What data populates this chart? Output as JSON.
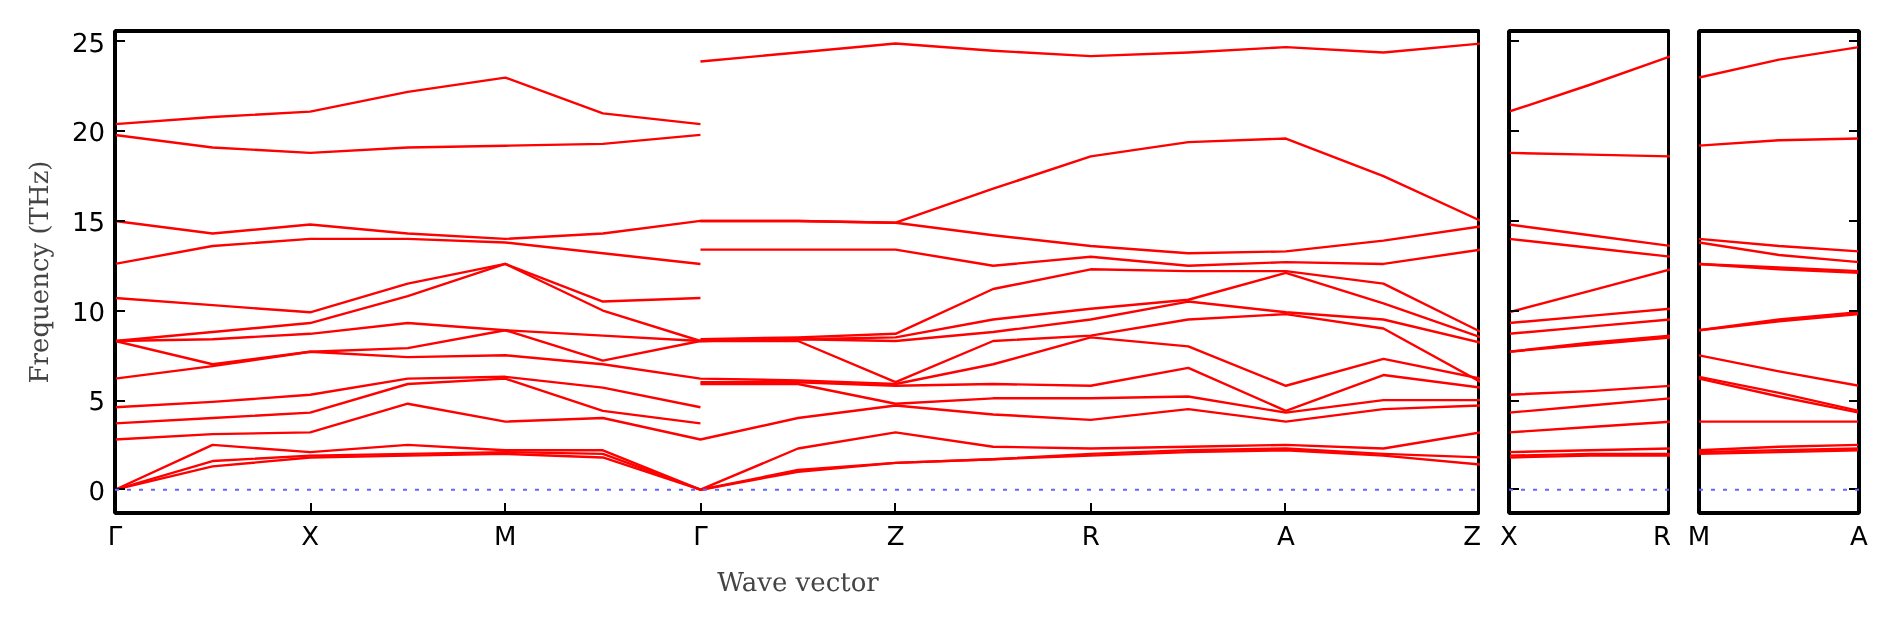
{
  "chart_data": [
    {
      "type": "line",
      "xlabel": "Wave vector",
      "ylabel": "Frequency (THz)",
      "ylim": [
        -1.3,
        25.6
      ],
      "grid": false,
      "categories": [
        "Γ",
        null,
        "X",
        null,
        "M",
        null,
        "Γ",
        null,
        "Z",
        null,
        "R",
        null,
        "A",
        null,
        "Z"
      ],
      "yticks": [
        0,
        5,
        10,
        15,
        20,
        25
      ],
      "ref_lines": [
        {
          "axis": "y",
          "value": 0,
          "color": "#6666ff",
          "line_style": "dotted"
        }
      ],
      "series": [
        {
          "color": "#ff0000",
          "values": [
            0,
            1.3,
            1.8,
            1.9,
            2.0,
            1.8,
            0,
            1.0,
            1.5,
            1.7,
            1.9,
            2.1,
            2.2,
            1.9,
            1.4
          ]
        },
        {
          "color": "#ff0000",
          "values": [
            0,
            1.6,
            1.9,
            2.0,
            2.1,
            2.0,
            0,
            1.1,
            1.5,
            1.7,
            2.0,
            2.2,
            2.3,
            2.0,
            1.8
          ]
        },
        {
          "color": "#ff0000",
          "values": [
            0,
            2.5,
            2.1,
            2.5,
            2.2,
            2.2,
            0,
            2.3,
            3.2,
            2.4,
            2.3,
            2.4,
            2.5,
            2.3,
            3.2
          ]
        },
        {
          "color": "#ff0000",
          "values": [
            2.8,
            3.1,
            3.2,
            4.8,
            3.8,
            4.0,
            2.8,
            4.0,
            4.7,
            4.2,
            3.9,
            4.5,
            3.8,
            4.5,
            4.7
          ]
        },
        {
          "color": "#ff0000",
          "values": [
            3.7,
            4.0,
            4.3,
            5.9,
            6.2,
            4.4,
            3.7,
            null,
            null,
            null,
            null,
            null,
            null,
            null,
            null
          ]
        },
        {
          "color": "#ff0000",
          "values": [
            4.6,
            4.9,
            5.3,
            6.2,
            6.3,
            5.7,
            4.6,
            null,
            null,
            null,
            null,
            null,
            null,
            null,
            null
          ]
        },
        {
          "color": "#ff0000",
          "values": [
            6.2,
            6.9,
            7.7,
            7.4,
            7.5,
            7.0,
            6.2,
            6.1,
            5.9,
            7.0,
            8.5,
            8.0,
            5.8,
            7.3,
            6.2
          ]
        },
        {
          "color": "#ff0000",
          "values": [
            8.3,
            7.0,
            7.7,
            7.9,
            8.9,
            7.2,
            8.3,
            8.3,
            6.0,
            8.3,
            8.6,
            9.5,
            9.8,
            9.0,
            6.0
          ]
        },
        {
          "color": "#ff0000",
          "values": [
            8.3,
            8.4,
            8.7,
            9.3,
            8.9,
            8.6,
            8.3,
            8.4,
            8.3,
            8.8,
            9.5,
            10.5,
            9.9,
            9.5,
            8.2
          ]
        },
        {
          "color": "#ff0000",
          "values": [
            8.3,
            8.8,
            9.3,
            10.8,
            12.6,
            10.0,
            8.3,
            8.4,
            8.5,
            9.5,
            10.1,
            10.6,
            12.1,
            10.4,
            8.5
          ]
        },
        {
          "color": "#ff0000",
          "values": [
            10.7,
            10.3,
            9.9,
            11.5,
            12.6,
            10.5,
            10.7,
            null,
            null,
            null,
            null,
            null,
            null,
            null,
            null
          ]
        },
        {
          "color": "#ff0000",
          "values": [
            12.6,
            13.6,
            14.0,
            14.0,
            13.8,
            13.2,
            12.6,
            null,
            null,
            null,
            null,
            null,
            null,
            null,
            null
          ]
        },
        {
          "color": "#ff0000",
          "values": [
            15.0,
            14.3,
            14.8,
            14.3,
            14.0,
            14.3,
            15.0,
            15.0,
            14.9,
            14.2,
            13.6,
            13.2,
            13.3,
            13.9,
            14.7
          ]
        },
        {
          "color": "#ff0000",
          "values": [
            19.8,
            19.1,
            18.8,
            19.1,
            19.2,
            19.3,
            19.8,
            null,
            null,
            null,
            null,
            null,
            null,
            null,
            null
          ]
        },
        {
          "color": "#ff0000",
          "values": [
            20.4,
            20.8,
            21.1,
            22.2,
            23.0,
            21.0,
            20.4,
            null,
            null,
            null,
            null,
            null,
            null,
            null,
            null
          ]
        },
        {
          "color": "#ff0000",
          "values": [
            null,
            null,
            null,
            null,
            null,
            null,
            5.9,
            5.9,
            4.8,
            5.1,
            5.1,
            5.2,
            4.3,
            5.0,
            5.0
          ]
        },
        {
          "color": "#ff0000",
          "values": [
            null,
            null,
            null,
            null,
            null,
            null,
            6.0,
            6.0,
            5.8,
            5.9,
            5.8,
            6.8,
            4.4,
            6.4,
            5.7
          ]
        },
        {
          "color": "#ff0000",
          "values": [
            null,
            null,
            null,
            null,
            null,
            null,
            8.4,
            8.5,
            8.7,
            11.2,
            12.3,
            12.2,
            12.2,
            11.5,
            8.8
          ]
        },
        {
          "color": "#ff0000",
          "values": [
            null,
            null,
            null,
            null,
            null,
            null,
            13.4,
            13.4,
            13.4,
            12.5,
            13.0,
            12.5,
            12.7,
            12.6,
            13.4
          ]
        },
        {
          "color": "#ff0000",
          "values": [
            null,
            null,
            null,
            null,
            null,
            null,
            15.0,
            15.0,
            14.9,
            16.8,
            18.6,
            19.4,
            19.6,
            17.5,
            15.0
          ]
        },
        {
          "color": "#ff0000",
          "values": [
            null,
            null,
            null,
            null,
            null,
            null,
            23.9,
            24.4,
            24.9,
            24.5,
            24.2,
            24.4,
            24.7,
            24.4,
            24.9
          ]
        }
      ]
    },
    {
      "type": "line",
      "ylim": [
        -1.3,
        25.6
      ],
      "grid": false,
      "tick_labels": "x",
      "categories": [
        "X",
        null,
        "R"
      ],
      "yticks": [
        0,
        5,
        10,
        15,
        20,
        25
      ],
      "ref_lines": [
        {
          "axis": "y",
          "value": 0,
          "color": "#6666ff",
          "line_style": "dotted"
        }
      ],
      "series": [
        {
          "color": "#ff0000",
          "values": [
            1.8,
            1.9,
            1.9
          ]
        },
        {
          "color": "#ff0000",
          "values": [
            1.9,
            2.0,
            2.0
          ]
        },
        {
          "color": "#ff0000",
          "values": [
            2.1,
            2.2,
            2.3
          ]
        },
        {
          "color": "#ff0000",
          "values": [
            3.2,
            3.5,
            3.8
          ]
        },
        {
          "color": "#ff0000",
          "values": [
            4.3,
            4.7,
            5.1
          ]
        },
        {
          "color": "#ff0000",
          "values": [
            5.3,
            5.5,
            5.8
          ]
        },
        {
          "color": "#ff0000",
          "values": [
            7.7,
            8.1,
            8.5
          ]
        },
        {
          "color": "#ff0000",
          "values": [
            7.7,
            8.2,
            8.6
          ]
        },
        {
          "color": "#ff0000",
          "values": [
            8.7,
            9.1,
            9.5
          ]
        },
        {
          "color": "#ff0000",
          "values": [
            9.3,
            9.7,
            10.1
          ]
        },
        {
          "color": "#ff0000",
          "values": [
            9.9,
            11.1,
            12.3
          ]
        },
        {
          "color": "#ff0000",
          "values": [
            14.0,
            13.5,
            13.0
          ]
        },
        {
          "color": "#ff0000",
          "values": [
            14.8,
            14.2,
            13.6
          ]
        },
        {
          "color": "#ff0000",
          "values": [
            18.8,
            18.7,
            18.6
          ]
        },
        {
          "color": "#ff0000",
          "values": [
            21.1,
            22.6,
            24.2
          ]
        }
      ]
    },
    {
      "type": "line",
      "ylim": [
        -1.3,
        25.6
      ],
      "grid": false,
      "tick_labels": "x",
      "categories": [
        "M",
        null,
        "A"
      ],
      "yticks": [
        0,
        5,
        10,
        15,
        20,
        25
      ],
      "ref_lines": [
        {
          "axis": "y",
          "value": 0,
          "color": "#6666ff",
          "line_style": "dotted"
        }
      ],
      "series": [
        {
          "color": "#ff0000",
          "values": [
            2.0,
            2.1,
            2.2
          ]
        },
        {
          "color": "#ff0000",
          "values": [
            2.1,
            2.2,
            2.3
          ]
        },
        {
          "color": "#ff0000",
          "values": [
            2.2,
            2.4,
            2.5
          ]
        },
        {
          "color": "#ff0000",
          "values": [
            3.8,
            3.8,
            3.8
          ]
        },
        {
          "color": "#ff0000",
          "values": [
            6.2,
            5.2,
            4.3
          ]
        },
        {
          "color": "#ff0000",
          "values": [
            6.3,
            5.4,
            4.4
          ]
        },
        {
          "color": "#ff0000",
          "values": [
            7.5,
            6.6,
            5.8
          ]
        },
        {
          "color": "#ff0000",
          "values": [
            8.9,
            9.4,
            9.8
          ]
        },
        {
          "color": "#ff0000",
          "values": [
            8.9,
            9.5,
            9.9
          ]
        },
        {
          "color": "#ff0000",
          "values": [
            12.6,
            12.3,
            12.1
          ]
        },
        {
          "color": "#ff0000",
          "values": [
            12.6,
            12.4,
            12.2
          ]
        },
        {
          "color": "#ff0000",
          "values": [
            13.8,
            13.1,
            12.7
          ]
        },
        {
          "color": "#ff0000",
          "values": [
            14.0,
            13.6,
            13.3
          ]
        },
        {
          "color": "#ff0000",
          "values": [
            19.2,
            19.5,
            19.6
          ]
        },
        {
          "color": "#ff0000",
          "values": [
            23.0,
            24.0,
            24.7
          ]
        }
      ]
    }
  ]
}
